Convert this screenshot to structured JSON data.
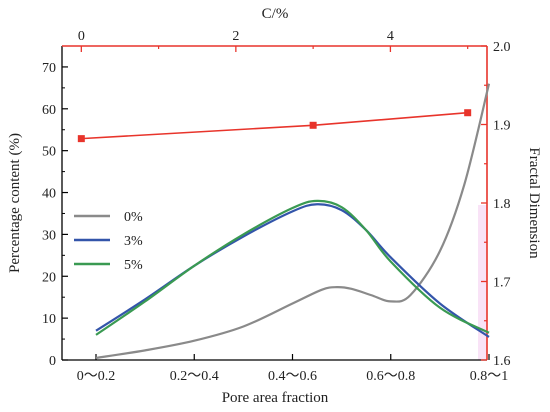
{
  "chart_data": {
    "type": "line",
    "x_bottom": {
      "label": "Pore area fraction",
      "categories": [
        "0～0.2",
        "0.2～0.4",
        "0.4～0.6",
        "0.6～0.8",
        "0.8～1"
      ]
    },
    "y_left": {
      "label": "Percentage content (%)",
      "lim": [
        0,
        75
      ],
      "ticks": [
        0,
        10,
        20,
        30,
        40,
        50,
        60,
        70
      ]
    },
    "x_top": {
      "label": "C/%",
      "lim": [
        -0.25,
        5.25
      ],
      "ticks": [
        0,
        2,
        4
      ],
      "minor_ticks": [
        1,
        3,
        5
      ],
      "color": "#e8342b"
    },
    "y_right": {
      "label": "Fractal Dimension",
      "lim": [
        1.6,
        2.0
      ],
      "ticks": [
        1.6,
        1.7,
        1.8,
        1.9,
        2.0
      ],
      "color": "#e8342b"
    },
    "series": [
      {
        "name": "0%",
        "color": "#8a8a8a",
        "x": [
          0,
          0.5,
          1,
          1.5,
          2,
          2.3,
          2.45,
          2.6,
          2.8,
          3,
          3.2,
          3.5,
          3.75,
          4
        ],
        "y": [
          0.5,
          2.3,
          4.6,
          8.0,
          13.5,
          16.8,
          17.4,
          17.0,
          15.5,
          14.0,
          15.5,
          26,
          42,
          66
        ]
      },
      {
        "name": "3%",
        "color": "#3355aa",
        "x": [
          0,
          0.5,
          1,
          1.5,
          2,
          2.25,
          2.5,
          2.75,
          3,
          3.5,
          4
        ],
        "y": [
          7,
          14.5,
          22.5,
          29.5,
          35.5,
          37.2,
          35.8,
          31.0,
          24.5,
          13.5,
          5.5
        ]
      },
      {
        "name": "5%",
        "color": "#3a9a52",
        "x": [
          0,
          0.5,
          1,
          1.5,
          2,
          2.25,
          2.5,
          2.75,
          3,
          3.5,
          4
        ],
        "y": [
          6,
          14.0,
          22.5,
          30.0,
          36.3,
          38.0,
          36.5,
          31.0,
          23.5,
          12.5,
          6.5
        ]
      },
      {
        "name": "Fractal Dimension",
        "axis": "top-right",
        "color": "#e8342b",
        "x": [
          0,
          3,
          5
        ],
        "y": [
          1.882,
          1.899,
          1.915
        ]
      }
    ],
    "legend": {
      "position": "center-left",
      "entries": [
        "0%",
        "3%",
        "5%"
      ]
    },
    "grid": false
  }
}
